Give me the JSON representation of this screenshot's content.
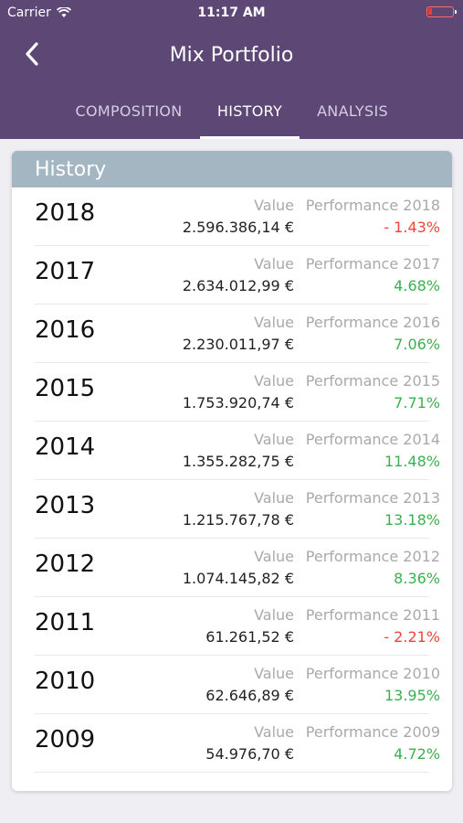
{
  "status_bar": {
    "carrier": "Carrier",
    "time": "11:17 AM"
  },
  "nav": {
    "title": "Mix Portfolio",
    "back_icon": "chevron-left-icon"
  },
  "tabs": [
    {
      "label": "COMPOSITION",
      "active": false
    },
    {
      "label": "HISTORY",
      "active": true
    },
    {
      "label": "ANALYSIS",
      "active": false
    }
  ],
  "history": {
    "title": "History",
    "value_label": "Value",
    "rows": [
      {
        "year": "2018",
        "value": "2.596.386,14 €",
        "perf_label": "Performance 2018",
        "perf": "- 1.43%",
        "trend": "neg"
      },
      {
        "year": "2017",
        "value": "2.634.012,99 €",
        "perf_label": "Performance 2017",
        "perf": "4.68%",
        "trend": "pos"
      },
      {
        "year": "2016",
        "value": "2.230.011,97 €",
        "perf_label": "Performance 2016",
        "perf": "7.06%",
        "trend": "pos"
      },
      {
        "year": "2015",
        "value": "1.753.920,74 €",
        "perf_label": "Performance 2015",
        "perf": "7.71%",
        "trend": "pos"
      },
      {
        "year": "2014",
        "value": "1.355.282,75 €",
        "perf_label": "Performance 2014",
        "perf": "11.48%",
        "trend": "pos"
      },
      {
        "year": "2013",
        "value": "1.215.767,78 €",
        "perf_label": "Performance 2013",
        "perf": "13.18%",
        "trend": "pos"
      },
      {
        "year": "2012",
        "value": "1.074.145,82 €",
        "perf_label": "Performance 2012",
        "perf": "8.36%",
        "trend": "pos"
      },
      {
        "year": "2011",
        "value": "61.261,52 €",
        "perf_label": "Performance 2011",
        "perf": "- 2.21%",
        "trend": "neg"
      },
      {
        "year": "2010",
        "value": "62.646,89 €",
        "perf_label": "Performance 2010",
        "perf": "13.95%",
        "trend": "pos"
      },
      {
        "year": "2009",
        "value": "54.976,70 €",
        "perf_label": "Performance 2009",
        "perf": "4.72%",
        "trend": "pos"
      }
    ]
  },
  "colors": {
    "header": "#5c4775",
    "card_header": "#a3b6c1",
    "positive": "#3ab04f",
    "negative": "#f04438"
  }
}
